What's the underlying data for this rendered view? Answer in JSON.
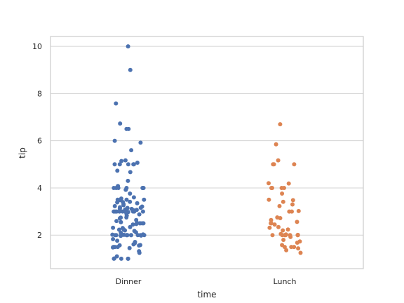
{
  "chart_data": {
    "type": "scatter",
    "subtype": "strip",
    "title": "",
    "xlabel": "time",
    "ylabel": "tip",
    "categories": [
      "Dinner",
      "Lunch"
    ],
    "ylim": [
      0.58,
      10.42
    ],
    "yticks": [
      2,
      4,
      6,
      8,
      10
    ],
    "grid": true,
    "colors": {
      "Dinner": "#4c72b0",
      "Lunch": "#dd8452",
      "grid": "#d3d3d3",
      "spine": "#cccccc"
    },
    "series": [
      {
        "category": "Dinner",
        "values": [
          10.0,
          9.0,
          7.58,
          6.73,
          6.5,
          6.5,
          6.0,
          5.92,
          5.6,
          5.17,
          5.14,
          5.07,
          5.0,
          5.0,
          5.0,
          5.0,
          5.0,
          4.73,
          4.67,
          4.3,
          4.08,
          4.0,
          4.0,
          4.0,
          4.0,
          4.0,
          4.0,
          4.0,
          3.92,
          3.76,
          3.6,
          3.55,
          3.5,
          3.5,
          3.5,
          3.48,
          3.41,
          3.4,
          3.39,
          3.35,
          3.31,
          3.27,
          3.23,
          3.21,
          3.18,
          3.16,
          3.15,
          3.12,
          3.11,
          3.09,
          3.07,
          3.06,
          3.0,
          3.0,
          3.0,
          3.0,
          3.0,
          3.0,
          3.0,
          3.0,
          3.0,
          3.0,
          3.0,
          2.98,
          2.92,
          2.88,
          2.83,
          2.75,
          2.74,
          2.71,
          2.64,
          2.6,
          2.55,
          2.52,
          2.5,
          2.5,
          2.5,
          2.5,
          2.47,
          2.45,
          2.34,
          2.31,
          2.3,
          2.24,
          2.23,
          2.2,
          2.18,
          2.12,
          2.1,
          2.03,
          2.02,
          2.01,
          2.0,
          2.0,
          2.0,
          2.0,
          2.0,
          2.0,
          2.0,
          2.0,
          2.0,
          2.0,
          1.98,
          1.97,
          1.83,
          1.76,
          1.71,
          1.66,
          1.61,
          1.58,
          1.57,
          1.56,
          1.5,
          1.5,
          1.5,
          1.48,
          1.45,
          1.32,
          1.25,
          1.1,
          1.0,
          1.0,
          1.0,
          1.0,
          1.01
        ]
      },
      {
        "category": "Lunch",
        "values": [
          6.7,
          5.85,
          5.17,
          5.0,
          5.0,
          5.0,
          4.2,
          4.19,
          4.0,
          4.0,
          4.0,
          4.0,
          3.76,
          3.5,
          3.48,
          3.41,
          3.3,
          3.23,
          3.02,
          3.0,
          3.0,
          2.75,
          2.72,
          2.64,
          2.56,
          2.5,
          2.5,
          2.45,
          2.34,
          2.31,
          2.24,
          2.2,
          2.05,
          2.03,
          2.01,
          2.0,
          2.0,
          2.0,
          2.0,
          2.0,
          2.0,
          2.0,
          1.92,
          1.8,
          1.73,
          1.68,
          1.58,
          1.5,
          1.5,
          1.5,
          1.44,
          1.36,
          1.25
        ]
      }
    ]
  }
}
